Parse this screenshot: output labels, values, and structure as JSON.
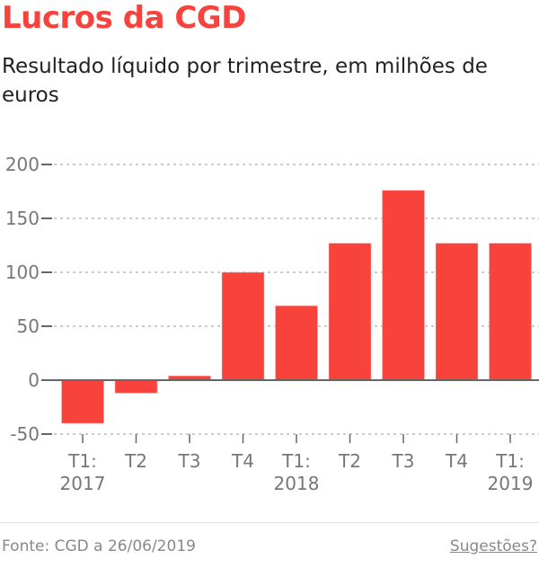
{
  "title": "Lucros da CGD",
  "subtitle": "Resultado líquido por trimestre, em milhões de euros",
  "footer": {
    "source": "Fonte: CGD a 26/06/2019",
    "suggestions_link": "Sugestões?"
  },
  "chart_data": {
    "type": "bar",
    "title": "Lucros da CGD",
    "subtitle": "Resultado líquido por trimestre, em milhões de euros",
    "categories": [
      [
        "T1:",
        "2017"
      ],
      [
        "T2"
      ],
      [
        "T3"
      ],
      [
        "T4"
      ],
      [
        "T1:",
        "2018"
      ],
      [
        "T2"
      ],
      [
        "T3"
      ],
      [
        "T4"
      ],
      [
        "T1:",
        "2019"
      ]
    ],
    "values": [
      -40,
      -12,
      4,
      100,
      69,
      127,
      176,
      127,
      127
    ],
    "ylim": [
      -50,
      200
    ],
    "yticks": [
      -50,
      0,
      50,
      100,
      150,
      200
    ],
    "grid": true,
    "bar_color": "#f8433d",
    "xlabel": "",
    "ylabel": ""
  }
}
